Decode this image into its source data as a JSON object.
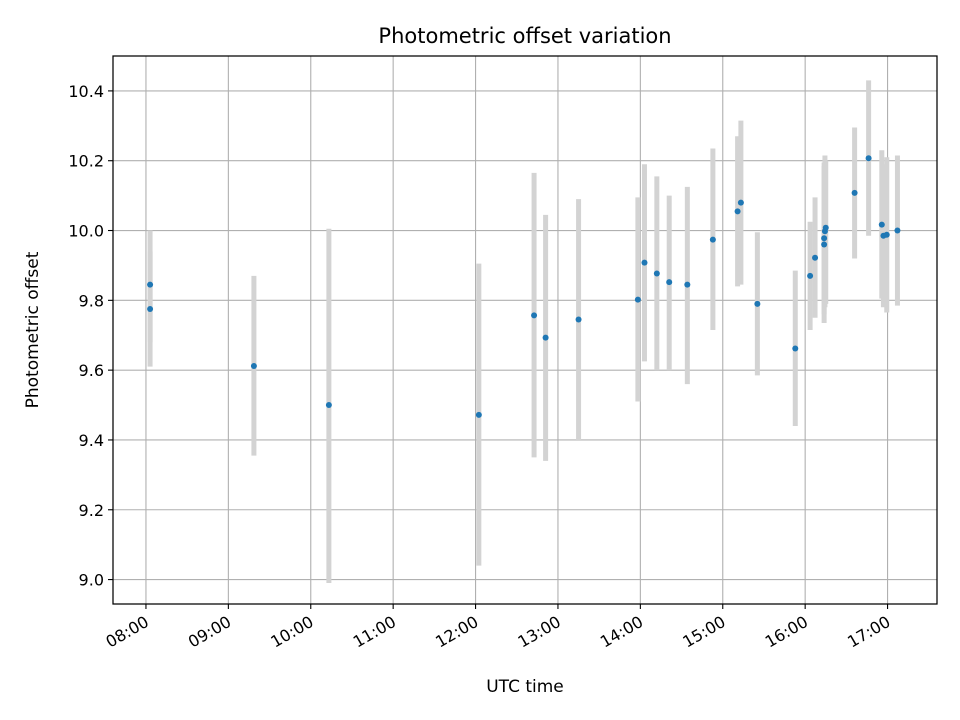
{
  "chart_data": {
    "type": "scatter",
    "title": "Photometric offset variation",
    "xlabel": "UTC time",
    "ylabel": "Photometric offset",
    "x_unit": "hours_utc",
    "xlim": [
      7.6,
      17.6
    ],
    "ylim": [
      8.93,
      10.5
    ],
    "grid": true,
    "xticks": [
      {
        "value": 8,
        "label": "08:00"
      },
      {
        "value": 9,
        "label": "09:00"
      },
      {
        "value": 10,
        "label": "10:00"
      },
      {
        "value": 11,
        "label": "11:00"
      },
      {
        "value": 12,
        "label": "12:00"
      },
      {
        "value": 13,
        "label": "13:00"
      },
      {
        "value": 14,
        "label": "14:00"
      },
      {
        "value": 15,
        "label": "15:00"
      },
      {
        "value": 16,
        "label": "16:00"
      },
      {
        "value": 17,
        "label": "17:00"
      }
    ],
    "yticks": [
      {
        "value": 9.0,
        "label": "9.0"
      },
      {
        "value": 9.2,
        "label": "9.2"
      },
      {
        "value": 9.4,
        "label": "9.4"
      },
      {
        "value": 9.6,
        "label": "9.6"
      },
      {
        "value": 9.8,
        "label": "9.8"
      },
      {
        "value": 10.0,
        "label": "10.0"
      },
      {
        "value": 10.2,
        "label": "10.2"
      },
      {
        "value": 10.4,
        "label": "10.4"
      }
    ],
    "marker_color": "#1f77b4",
    "errorbar_color": "#d3d3d3",
    "points": [
      {
        "x": 8.05,
        "y": 9.845,
        "lo": 9.68,
        "hi": 10.0
      },
      {
        "x": 8.05,
        "y": 9.775,
        "lo": 9.61,
        "hi": 9.94
      },
      {
        "x": 9.31,
        "y": 9.612,
        "lo": 9.355,
        "hi": 9.87
      },
      {
        "x": 10.22,
        "y": 9.5,
        "lo": 8.99,
        "hi": 10.005
      },
      {
        "x": 12.04,
        "y": 9.472,
        "lo": 9.04,
        "hi": 9.905
      },
      {
        "x": 12.71,
        "y": 9.757,
        "lo": 9.35,
        "hi": 10.165
      },
      {
        "x": 12.85,
        "y": 9.693,
        "lo": 9.34,
        "hi": 10.045
      },
      {
        "x": 13.25,
        "y": 9.745,
        "lo": 9.4,
        "hi": 10.09
      },
      {
        "x": 13.97,
        "y": 9.802,
        "lo": 9.51,
        "hi": 10.095
      },
      {
        "x": 14.05,
        "y": 9.908,
        "lo": 9.625,
        "hi": 10.19
      },
      {
        "x": 14.2,
        "y": 9.877,
        "lo": 9.6,
        "hi": 10.155
      },
      {
        "x": 14.35,
        "y": 9.852,
        "lo": 9.6,
        "hi": 10.1
      },
      {
        "x": 14.57,
        "y": 9.845,
        "lo": 9.56,
        "hi": 10.125
      },
      {
        "x": 14.88,
        "y": 9.974,
        "lo": 9.715,
        "hi": 10.235
      },
      {
        "x": 15.18,
        "y": 10.055,
        "lo": 9.84,
        "hi": 10.27
      },
      {
        "x": 15.22,
        "y": 10.08,
        "lo": 9.845,
        "hi": 10.315
      },
      {
        "x": 15.42,
        "y": 9.79,
        "lo": 9.585,
        "hi": 9.995
      },
      {
        "x": 15.88,
        "y": 9.662,
        "lo": 9.44,
        "hi": 9.885
      },
      {
        "x": 16.06,
        "y": 9.87,
        "lo": 9.715,
        "hi": 10.025
      },
      {
        "x": 16.12,
        "y": 9.922,
        "lo": 9.75,
        "hi": 10.095
      },
      {
        "x": 16.23,
        "y": 9.96,
        "lo": 9.735,
        "hi": 10.185
      },
      {
        "x": 16.23,
        "y": 9.978,
        "lo": 9.76,
        "hi": 10.195
      },
      {
        "x": 16.24,
        "y": 9.998,
        "lo": 9.78,
        "hi": 10.215
      },
      {
        "x": 16.25,
        "y": 10.008,
        "lo": 9.79,
        "hi": 10.2
      },
      {
        "x": 16.6,
        "y": 10.108,
        "lo": 9.92,
        "hi": 10.295
      },
      {
        "x": 16.77,
        "y": 10.207,
        "lo": 9.985,
        "hi": 10.43
      },
      {
        "x": 16.93,
        "y": 10.017,
        "lo": 9.805,
        "hi": 10.23
      },
      {
        "x": 16.95,
        "y": 9.985,
        "lo": 9.78,
        "hi": 10.19
      },
      {
        "x": 16.99,
        "y": 9.988,
        "lo": 9.765,
        "hi": 10.21
      },
      {
        "x": 17.12,
        "y": 10.0,
        "lo": 9.785,
        "hi": 10.215
      }
    ]
  }
}
